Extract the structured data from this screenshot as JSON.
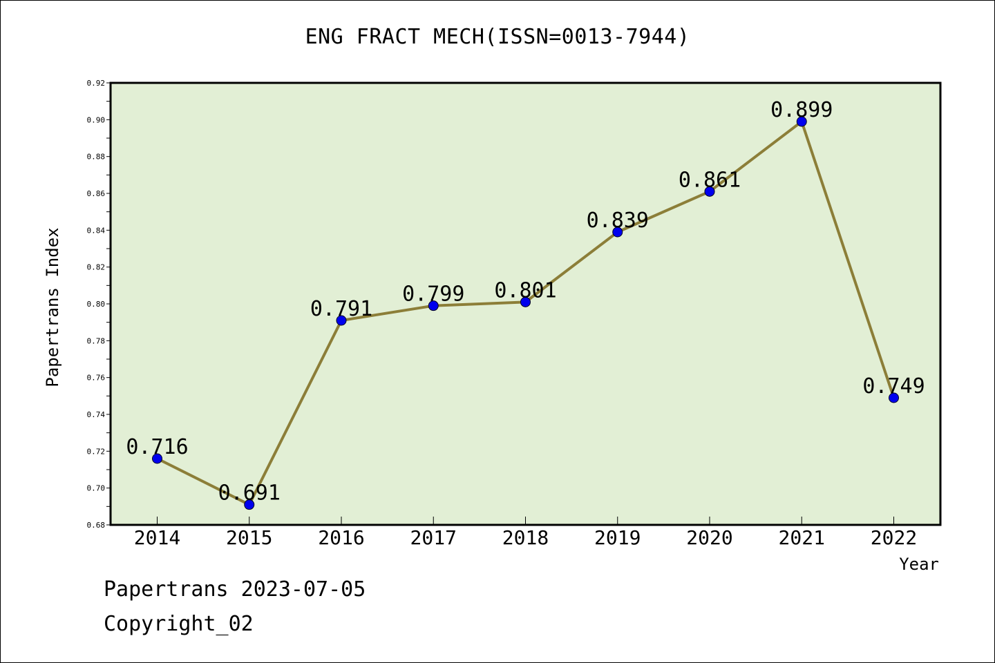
{
  "chart_data": {
    "type": "line",
    "title": "ENG FRACT MECH(ISSN=0013-7944)",
    "xlabel": "Year",
    "ylabel": "Papertrans Index",
    "categories": [
      "2014",
      "2015",
      "2016",
      "2017",
      "2018",
      "2019",
      "2020",
      "2021",
      "2022"
    ],
    "series": [
      {
        "values": [
          0.716,
          0.691,
          0.791,
          0.799,
          0.801,
          0.839,
          0.861,
          0.899,
          0.749
        ]
      }
    ],
    "data_labels": [
      "0.716",
      "0.691",
      "0.791",
      "0.799",
      "0.801",
      "0.839",
      "0.861",
      "0.899",
      "0.749"
    ],
    "ylim": [
      0.68,
      0.92
    ],
    "yticks": [
      "0.68",
      "0.70",
      "0.72",
      "0.74",
      "0.76",
      "0.78",
      "0.80",
      "0.82",
      "0.84",
      "0.86",
      "0.88",
      "0.90",
      "0.92"
    ],
    "grid": false,
    "legend": "none",
    "colors": {
      "plot_background": "#e2efd5",
      "line": "#8c7e38",
      "marker": "#0000ee"
    }
  },
  "footer": {
    "source_line": "Papertrans 2023-07-05",
    "copyright": "Copyright_02"
  }
}
